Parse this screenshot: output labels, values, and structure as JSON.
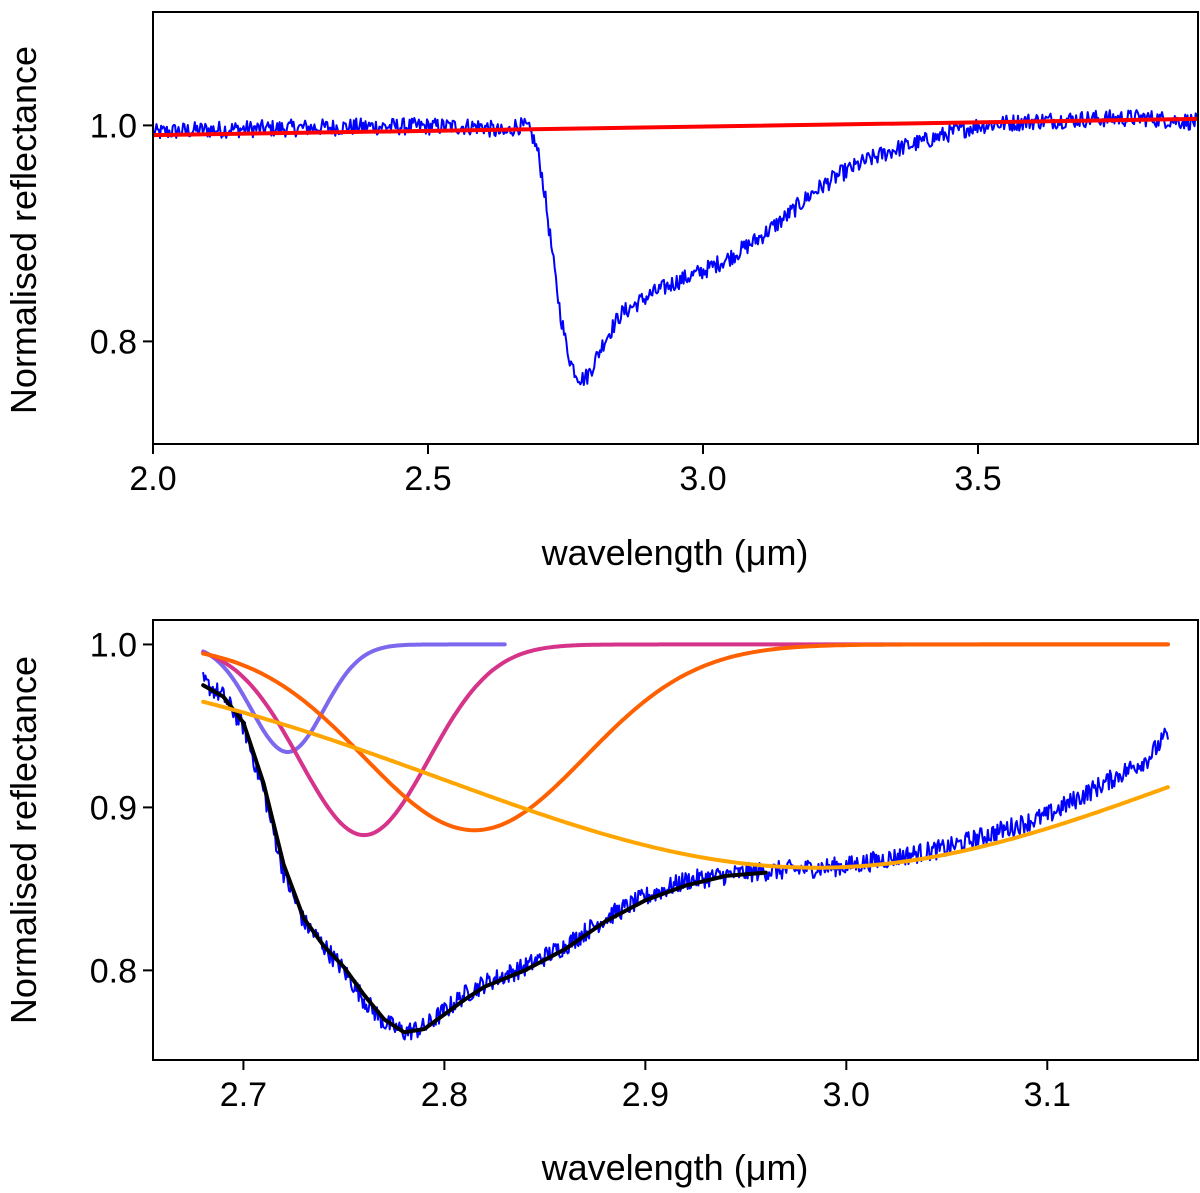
{
  "chart_data": [
    {
      "type": "line",
      "xlabel": "wavelength (μm)",
      "ylabel": "Normalised reflectance",
      "xlim": [
        2.0,
        3.9
      ],
      "ylim": [
        0.705,
        1.105
      ],
      "xticks": [
        2.0,
        2.5,
        3.0,
        3.5
      ],
      "xtick_labels": [
        "2.0",
        "2.5",
        "3.0",
        "3.5"
      ],
      "yticks": [
        0.8,
        1.0
      ],
      "ytick_labels": [
        "0.8",
        "1.0"
      ],
      "grid": false,
      "series": [
        {
          "kind": "spectrum",
          "color": "#0000ff",
          "points": [
            [
              2.0,
              0.993
            ],
            [
              2.05,
              0.995
            ],
            [
              2.1,
              0.996
            ],
            [
              2.2,
              0.997
            ],
            [
              2.3,
              0.998
            ],
            [
              2.4,
              0.999
            ],
            [
              2.5,
              0.999
            ],
            [
              2.6,
              0.999
            ],
            [
              2.64,
              0.992
            ],
            [
              2.66,
              1.0
            ],
            [
              2.68,
              0.998
            ],
            [
              2.69,
              0.99
            ],
            [
              2.7,
              0.975
            ],
            [
              2.71,
              0.945
            ],
            [
              2.72,
              0.905
            ],
            [
              2.73,
              0.865
            ],
            [
              2.74,
              0.828
            ],
            [
              2.75,
              0.8
            ],
            [
              2.76,
              0.78
            ],
            [
              2.77,
              0.77
            ],
            [
              2.78,
              0.765
            ],
            [
              2.79,
              0.768
            ],
            [
              2.8,
              0.778
            ],
            [
              2.82,
              0.8
            ],
            [
              2.85,
              0.825
            ],
            [
              2.9,
              0.842
            ],
            [
              2.95,
              0.855
            ],
            [
              3.0,
              0.865
            ],
            [
              3.05,
              0.878
            ],
            [
              3.1,
              0.895
            ],
            [
              3.15,
              0.915
            ],
            [
              3.2,
              0.938
            ],
            [
              3.25,
              0.955
            ],
            [
              3.3,
              0.968
            ],
            [
              3.35,
              0.978
            ],
            [
              3.4,
              0.985
            ],
            [
              3.45,
              0.993
            ],
            [
              3.5,
              1.0
            ],
            [
              3.55,
              1.002
            ],
            [
              3.6,
              1.004
            ],
            [
              3.7,
              1.006
            ],
            [
              3.8,
              1.007
            ],
            [
              3.9,
              1.003
            ]
          ]
        },
        {
          "kind": "continuum",
          "color": "#ff0000",
          "points": [
            [
              2.0,
              0.991
            ],
            [
              3.9,
              1.006
            ]
          ]
        }
      ]
    },
    {
      "type": "line",
      "xlabel": "wavelength (μm)",
      "ylabel": "Normalised reflectance",
      "xlim": [
        2.655,
        3.175
      ],
      "ylim": [
        0.745,
        1.015
      ],
      "xticks": [
        2.7,
        2.8,
        2.9,
        3.0,
        3.1
      ],
      "xtick_labels": [
        "2.7",
        "2.8",
        "2.9",
        "3.0",
        "3.1"
      ],
      "yticks": [
        0.8,
        0.9,
        1.0
      ],
      "ytick_labels": [
        "0.8",
        "0.9",
        "1.0"
      ],
      "grid": false,
      "series": [
        {
          "kind": "spectrum",
          "color": "#0000ff",
          "points": [
            [
              2.68,
              0.977
            ],
            [
              2.69,
              0.968
            ],
            [
              2.7,
              0.95
            ],
            [
              2.71,
              0.91
            ],
            [
              2.72,
              0.86
            ],
            [
              2.73,
              0.83
            ],
            [
              2.74,
              0.815
            ],
            [
              2.75,
              0.8
            ],
            [
              2.76,
              0.782
            ],
            [
              2.77,
              0.768
            ],
            [
              2.78,
              0.762
            ],
            [
              2.79,
              0.765
            ],
            [
              2.8,
              0.775
            ],
            [
              2.81,
              0.785
            ],
            [
              2.82,
              0.792
            ],
            [
              2.84,
              0.802
            ],
            [
              2.86,
              0.815
            ],
            [
              2.88,
              0.832
            ],
            [
              2.9,
              0.845
            ],
            [
              2.92,
              0.855
            ],
            [
              2.95,
              0.86
            ],
            [
              3.0,
              0.864
            ],
            [
              3.05,
              0.875
            ],
            [
              3.1,
              0.895
            ],
            [
              3.15,
              0.93
            ],
            [
              3.16,
              0.945
            ]
          ]
        },
        {
          "kind": "fit",
          "color": "#000000",
          "points": [
            [
              2.68,
              0.975
            ],
            [
              2.69,
              0.968
            ],
            [
              2.7,
              0.952
            ],
            [
              2.71,
              0.915
            ],
            [
              2.72,
              0.865
            ],
            [
              2.73,
              0.832
            ],
            [
              2.74,
              0.815
            ],
            [
              2.75,
              0.802
            ],
            [
              2.76,
              0.785
            ],
            [
              2.77,
              0.77
            ],
            [
              2.78,
              0.762
            ],
            [
              2.79,
              0.764
            ],
            [
              2.8,
              0.773
            ],
            [
              2.81,
              0.782
            ],
            [
              2.82,
              0.79
            ],
            [
              2.84,
              0.8
            ],
            [
              2.86,
              0.813
            ],
            [
              2.88,
              0.83
            ],
            [
              2.9,
              0.843
            ],
            [
              2.92,
              0.852
            ],
            [
              2.94,
              0.858
            ],
            [
              2.96,
              0.86
            ]
          ]
        },
        {
          "kind": "gaussian",
          "color": "#7b68ee",
          "center": 2.722,
          "depth": 0.066,
          "width": 0.018,
          "x_range": [
            2.68,
            2.83
          ]
        },
        {
          "kind": "gaussian",
          "color": "#d6338a",
          "center": 2.76,
          "depth": 0.117,
          "width": 0.032,
          "x_range": [
            2.68,
            3.16
          ]
        },
        {
          "kind": "gaussian",
          "color": "#ff6000",
          "center": 2.815,
          "depth": 0.114,
          "width": 0.055,
          "x_range": [
            2.68,
            3.16
          ]
        },
        {
          "kind": "gaussian",
          "color": "#ffa500",
          "center": 2.985,
          "depth": 0.137,
          "width": 0.185,
          "x_range": [
            2.68,
            3.16
          ]
        }
      ]
    }
  ]
}
